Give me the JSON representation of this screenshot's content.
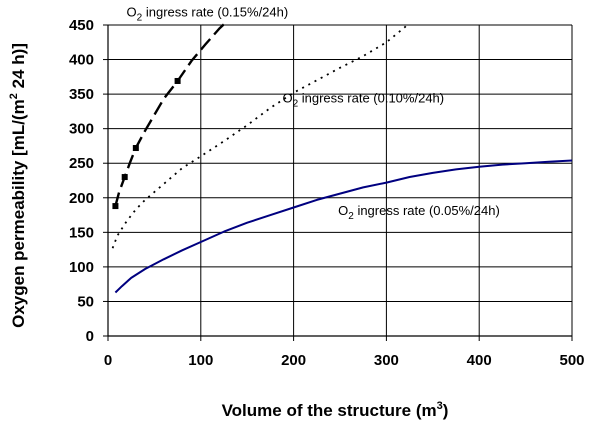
{
  "chart_data": {
    "type": "line",
    "xlabel": {
      "main": "Volume of the structure (m",
      "sup": "3",
      "close": ")"
    },
    "ylabel": {
      "main": "Oxygen permeability [mL/(m",
      "sup": "2",
      "close": " 24 h)]"
    },
    "xlim": [
      0,
      500
    ],
    "ylim": [
      0,
      450
    ],
    "x_ticks": [
      0,
      100,
      200,
      300,
      400,
      500
    ],
    "y_ticks": [
      0,
      50,
      100,
      150,
      200,
      250,
      300,
      350,
      400,
      450
    ],
    "grid": {
      "horizontal": true,
      "vertical": true
    },
    "series": [
      {
        "name": "O₂ ingress rate (0.15%/24h)",
        "name_parts": {
          "o": "O",
          "sub": "2",
          "rest": " ingress rate (0.15%/24h)"
        },
        "label_anchor": {
          "x": 20,
          "y": 462
        },
        "color": "#000000",
        "style": "longdash",
        "stroke_width": 2.4,
        "markers": [
          {
            "x": 8,
            "y": 188
          },
          {
            "x": 18,
            "y": 230
          },
          {
            "x": 30,
            "y": 272
          },
          {
            "x": 75,
            "y": 369
          }
        ],
        "points": [
          [
            8,
            188
          ],
          [
            12,
            208
          ],
          [
            18,
            230
          ],
          [
            24,
            252
          ],
          [
            30,
            272
          ],
          [
            40,
            297
          ],
          [
            50,
            320
          ],
          [
            60,
            343
          ],
          [
            75,
            369
          ],
          [
            90,
            398
          ],
          [
            105,
            422
          ],
          [
            120,
            445
          ],
          [
            128,
            455
          ]
        ]
      },
      {
        "name": "O₂ ingress rate (0.10%/24h)",
        "name_parts": {
          "o": "O",
          "sub": "2",
          "rest": " ingress rate (0.10%/24h)"
        },
        "label_anchor": {
          "x": 188,
          "y": 338
        },
        "color": "#000000",
        "style": "dotted",
        "stroke_width": 1.8,
        "markers": [],
        "points": [
          [
            5,
            127
          ],
          [
            10,
            145
          ],
          [
            20,
            166
          ],
          [
            30,
            183
          ],
          [
            40,
            197
          ],
          [
            60,
            220
          ],
          [
            80,
            243
          ],
          [
            100,
            260
          ],
          [
            125,
            282
          ],
          [
            150,
            305
          ],
          [
            175,
            330
          ],
          [
            200,
            352
          ],
          [
            225,
            370
          ],
          [
            250,
            388
          ],
          [
            275,
            405
          ],
          [
            300,
            425
          ],
          [
            320,
            447
          ],
          [
            325,
            455
          ]
        ]
      },
      {
        "name": "O₂ ingress rate (0.05%/24h)",
        "name_parts": {
          "o": "O",
          "sub": "2",
          "rest": " ingress rate (0.05%/24h)"
        },
        "label_anchor": {
          "x": 248,
          "y": 175
        },
        "color": "#000080",
        "style": "solid",
        "stroke_width": 2.0,
        "markers": [],
        "points": [
          [
            8,
            63
          ],
          [
            15,
            72
          ],
          [
            25,
            84
          ],
          [
            40,
            97
          ],
          [
            60,
            111
          ],
          [
            80,
            124
          ],
          [
            100,
            136
          ],
          [
            125,
            151
          ],
          [
            150,
            164
          ],
          [
            175,
            175
          ],
          [
            200,
            186
          ],
          [
            225,
            197
          ],
          [
            250,
            206
          ],
          [
            275,
            215
          ],
          [
            300,
            222
          ],
          [
            325,
            230
          ],
          [
            350,
            236
          ],
          [
            375,
            241
          ],
          [
            400,
            245
          ],
          [
            425,
            248
          ],
          [
            450,
            250
          ],
          [
            475,
            252
          ],
          [
            500,
            254
          ]
        ]
      }
    ]
  }
}
